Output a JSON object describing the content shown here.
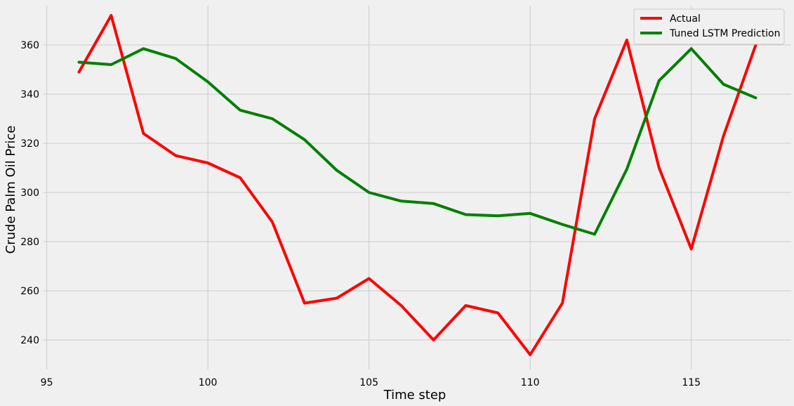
{
  "chart_data": {
    "type": "line",
    "title": "",
    "xlabel": "Time step",
    "ylabel": "Crude Palm Oil Price",
    "xlim": [
      94.9,
      118.1
    ],
    "ylim": [
      228,
      376
    ],
    "xticks": [
      95,
      100,
      105,
      110,
      115
    ],
    "yticks": [
      240,
      260,
      280,
      300,
      320,
      340,
      360
    ],
    "grid": true,
    "legend_position": "top-right",
    "x": [
      96,
      97,
      98,
      99,
      100,
      101,
      102,
      103,
      104,
      105,
      106,
      107,
      108,
      109,
      110,
      111,
      112,
      113,
      114,
      115,
      116,
      117
    ],
    "series": [
      {
        "name": "Actual",
        "color": "#ff0000",
        "values": [
          349,
          372,
          324,
          315,
          312,
          306,
          288,
          255,
          257,
          265,
          254,
          240,
          254,
          251,
          234,
          255,
          330,
          362,
          310,
          277,
          323,
          360
        ]
      },
      {
        "name": "Tuned LSTM Prediction",
        "color": "#008000",
        "values": [
          353,
          352,
          358.5,
          354.5,
          345,
          333.5,
          330,
          321.5,
          309,
          300,
          296.5,
          295.5,
          291,
          290.5,
          291.5,
          287,
          283,
          309.5,
          345.5,
          358.5,
          344,
          338.5
        ]
      }
    ]
  }
}
